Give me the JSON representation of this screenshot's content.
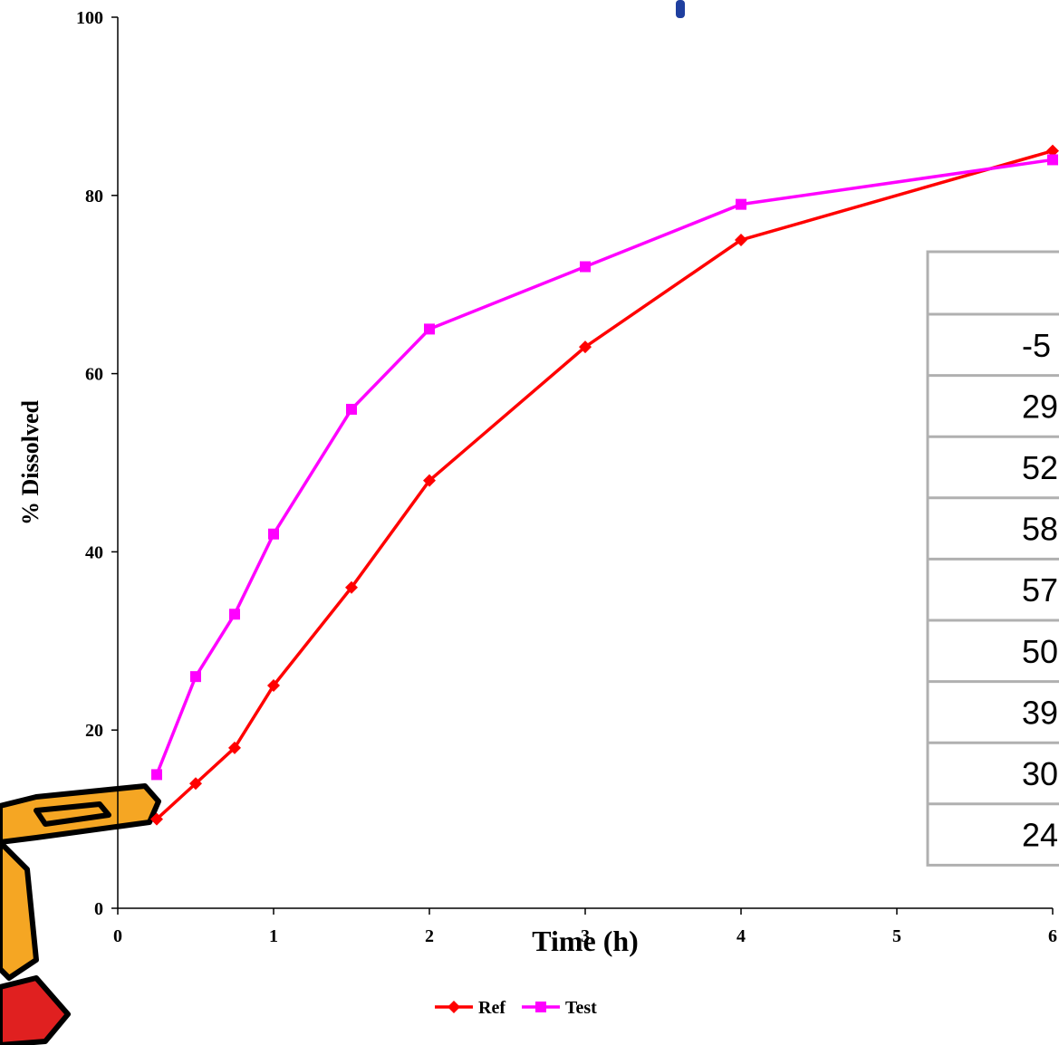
{
  "chart_data": {
    "type": "line",
    "x_label": "Time (h)",
    "y_label": "% Dissolved",
    "xlim": [
      0,
      6
    ],
    "xticks": [
      0,
      1,
      2,
      3,
      4,
      5,
      6
    ],
    "ylim": [
      0,
      100
    ],
    "yticks": [
      0,
      20,
      40,
      60,
      80,
      100
    ],
    "x": [
      0.25,
      0.5,
      0.75,
      1,
      1.5,
      2,
      3,
      4,
      6
    ],
    "series": [
      {
        "name": "Ref",
        "color": "#ff0000",
        "marker": "diamond",
        "values": [
          10,
          14,
          18,
          25,
          36,
          48,
          63,
          75,
          85
        ]
      },
      {
        "name": "Test",
        "color": "#ff00ff",
        "marker": "square",
        "values": [
          15,
          26,
          33,
          42,
          56,
          65,
          72,
          79,
          84
        ]
      }
    ]
  },
  "table": {
    "cells": [
      "-5",
      "29",
      "52",
      "58",
      "57",
      "50",
      "39",
      "30",
      "24"
    ]
  }
}
